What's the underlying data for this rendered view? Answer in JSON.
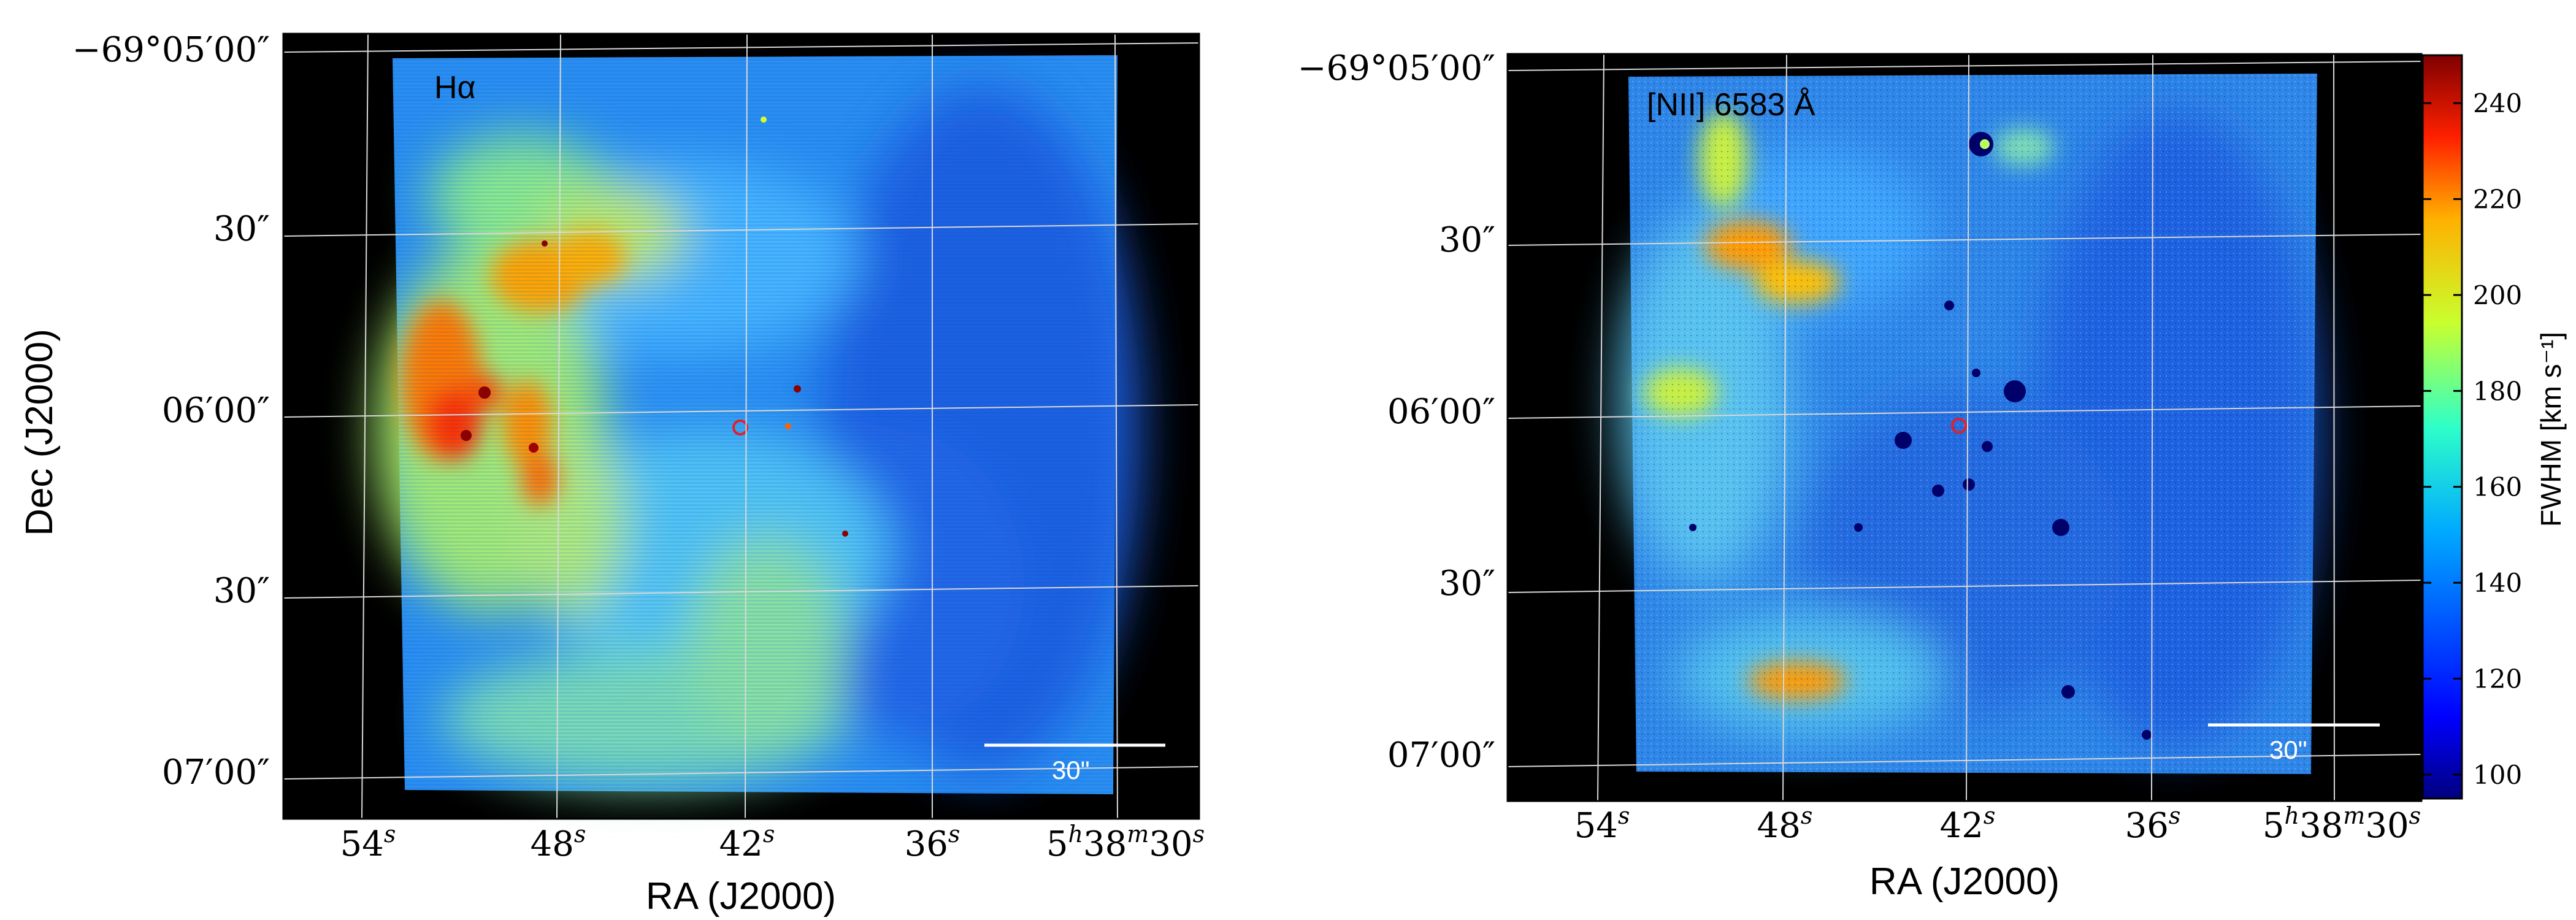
{
  "panels": [
    {
      "label": "Hα",
      "ra_ticks": [
        "54",
        "48",
        "42",
        "36"
      ],
      "ra_last": {
        "h": "5",
        "m": "38",
        "s": "30"
      },
      "dec_ticks": [
        "−69°05′00″",
        "30″",
        "06′00″",
        "30″",
        "07′00″"
      ],
      "xlabel": "RA (J2000)",
      "ylabel": "Dec (J2000)",
      "scalebar_label": "30\""
    },
    {
      "label": "[NII] 6583 Å",
      "ra_ticks": [
        "54",
        "48",
        "42",
        "36"
      ],
      "ra_last": {
        "h": "5",
        "m": "38",
        "s": "30"
      },
      "dec_ticks": [
        "−69°05′00″",
        "30″",
        "06′00″",
        "30″",
        "07′00″"
      ],
      "xlabel": "RA (J2000)",
      "scalebar_label": "30\""
    }
  ],
  "colorbar": {
    "label": "FWHM [km s⁻¹]",
    "ticks": [
      "100",
      "120",
      "140",
      "160",
      "180",
      "200",
      "220",
      "240"
    ],
    "min": 95,
    "max": 250,
    "colormap": "jet"
  },
  "colors": {
    "frame_background": "#000000",
    "grid": "#d9d9d9",
    "annotation": "#ffffff",
    "marker": "#e0202a"
  }
}
